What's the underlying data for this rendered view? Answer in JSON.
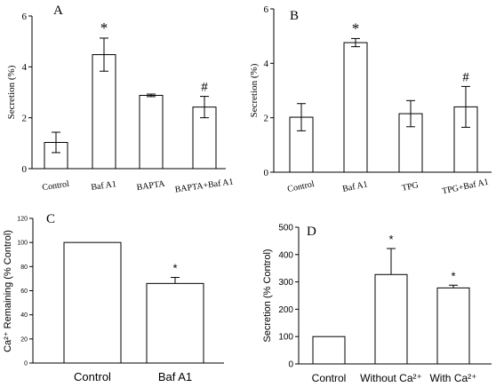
{
  "chart_data": [
    {
      "panel": "A",
      "type": "bar",
      "categories": [
        "Control",
        "Baf A1",
        "BAPTA",
        "BAPTA+Baf A1"
      ],
      "values": [
        1.03,
        4.48,
        2.88,
        2.42
      ],
      "errors": [
        0.4,
        0.65,
        0.05,
        0.42
      ],
      "annotations": [
        "",
        "*",
        "",
        "#"
      ],
      "ylabel": "Secretion (%)",
      "ylim": [
        0,
        6
      ],
      "yticks": [
        0,
        2,
        4,
        6
      ]
    },
    {
      "panel": "B",
      "type": "bar",
      "categories": [
        "Control",
        "Baf A1",
        "TPG",
        "TPG+Baf A1"
      ],
      "values": [
        2.02,
        4.76,
        2.15,
        2.4
      ],
      "errors": [
        0.5,
        0.15,
        0.48,
        0.75
      ],
      "annotations": [
        "",
        "*",
        "",
        "#"
      ],
      "ylabel": "Secretion (%)",
      "ylim": [
        0,
        6
      ],
      "yticks": [
        0,
        2,
        4,
        6
      ]
    },
    {
      "panel": "C",
      "type": "bar",
      "categories": [
        "Control",
        "Baf A1"
      ],
      "values": [
        100,
        66
      ],
      "errors": [
        0,
        5
      ],
      "annotations": [
        "",
        "*"
      ],
      "ylabel": "Ca²⁺ Remaining (% Control)",
      "ylim": [
        0,
        120
      ],
      "yticks": [
        0,
        20,
        40,
        60,
        80,
        100,
        120
      ]
    },
    {
      "panel": "D",
      "type": "bar",
      "categories": [
        "Control",
        "Without Ca²⁺",
        "With Ca²⁺"
      ],
      "values": [
        100,
        327,
        278
      ],
      "errors": [
        0,
        95,
        10
      ],
      "annotations": [
        "",
        "*",
        "*"
      ],
      "ylabel": "Secretion (% Control)",
      "ylim": [
        0,
        500
      ],
      "yticks": [
        0,
        100,
        200,
        300,
        400,
        500
      ]
    }
  ]
}
